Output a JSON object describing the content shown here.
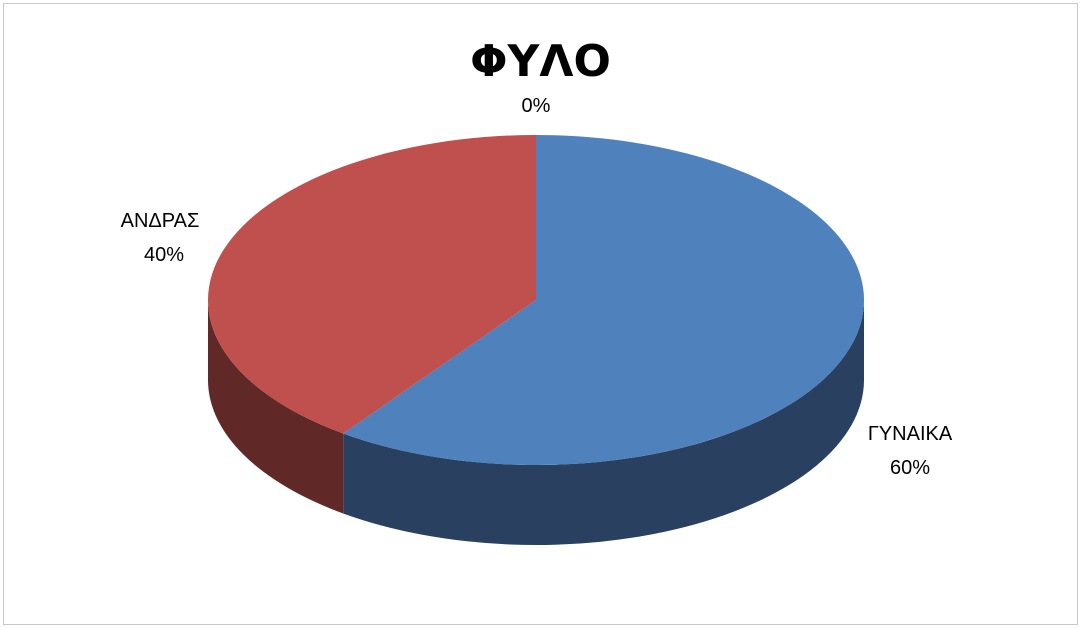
{
  "chart_data": {
    "type": "pie",
    "title": "ΦΥΛΟ",
    "categories": [
      "ΓΥΝΑΙΚΑ",
      "ΑΝΔΡΑΣ",
      ""
    ],
    "values": [
      60,
      40,
      0
    ],
    "data_labels": [
      {
        "name": "ΓΥΝΑΙΚΑ",
        "value": "60%"
      },
      {
        "name": "ΑΝΔΡΑΣ",
        "value": "40%"
      },
      {
        "name": "",
        "value": "0%"
      }
    ],
    "colors": [
      "#4F81BD",
      "#C0504D",
      "#9BBB59"
    ],
    "side_colors": [
      "#2A4060",
      "#612828",
      "#4E5E2C"
    ],
    "three_d": true,
    "legend": "none"
  }
}
